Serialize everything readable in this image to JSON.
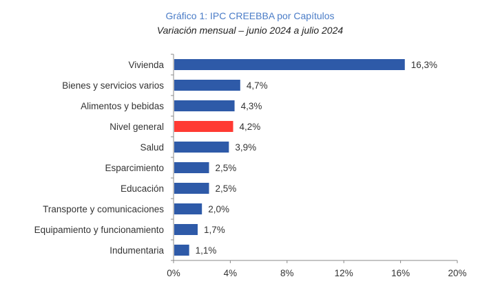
{
  "chart_data": {
    "type": "bar",
    "orientation": "horizontal",
    "title": "Gráfico 1: IPC CREEBBA por Capítulos",
    "subtitle": "Variación mensual – junio 2024 a julio 2024",
    "categories": [
      "Vivienda",
      "Bienes y servicios varios",
      "Alimentos y bebidas",
      "Nivel general",
      "Salud",
      "Esparcimiento",
      "Educación",
      "Transporte y comunicaciones",
      "Equipamiento y funcionamiento",
      "Indumentaria"
    ],
    "values": [
      16.3,
      4.7,
      4.3,
      4.2,
      3.9,
      2.5,
      2.5,
      2.0,
      1.7,
      1.1
    ],
    "value_labels": [
      "16,3%",
      "4,7%",
      "4,3%",
      "4,2%",
      "3,9%",
      "2,5%",
      "2,5%",
      "2,0%",
      "1,7%",
      "1,1%"
    ],
    "highlight": "Nivel general",
    "xlim": [
      0,
      20
    ],
    "xticks": [
      0,
      4,
      8,
      12,
      16,
      20
    ],
    "xtick_labels": [
      "0%",
      "4%",
      "8%",
      "12%",
      "16%",
      "20%"
    ],
    "xlabel": "",
    "ylabel": "",
    "grid": false,
    "colors": {
      "bar": "#2e5aa8",
      "highlight": "#ff3a33",
      "title": "#4a7cc7",
      "axis": "#888888"
    }
  }
}
